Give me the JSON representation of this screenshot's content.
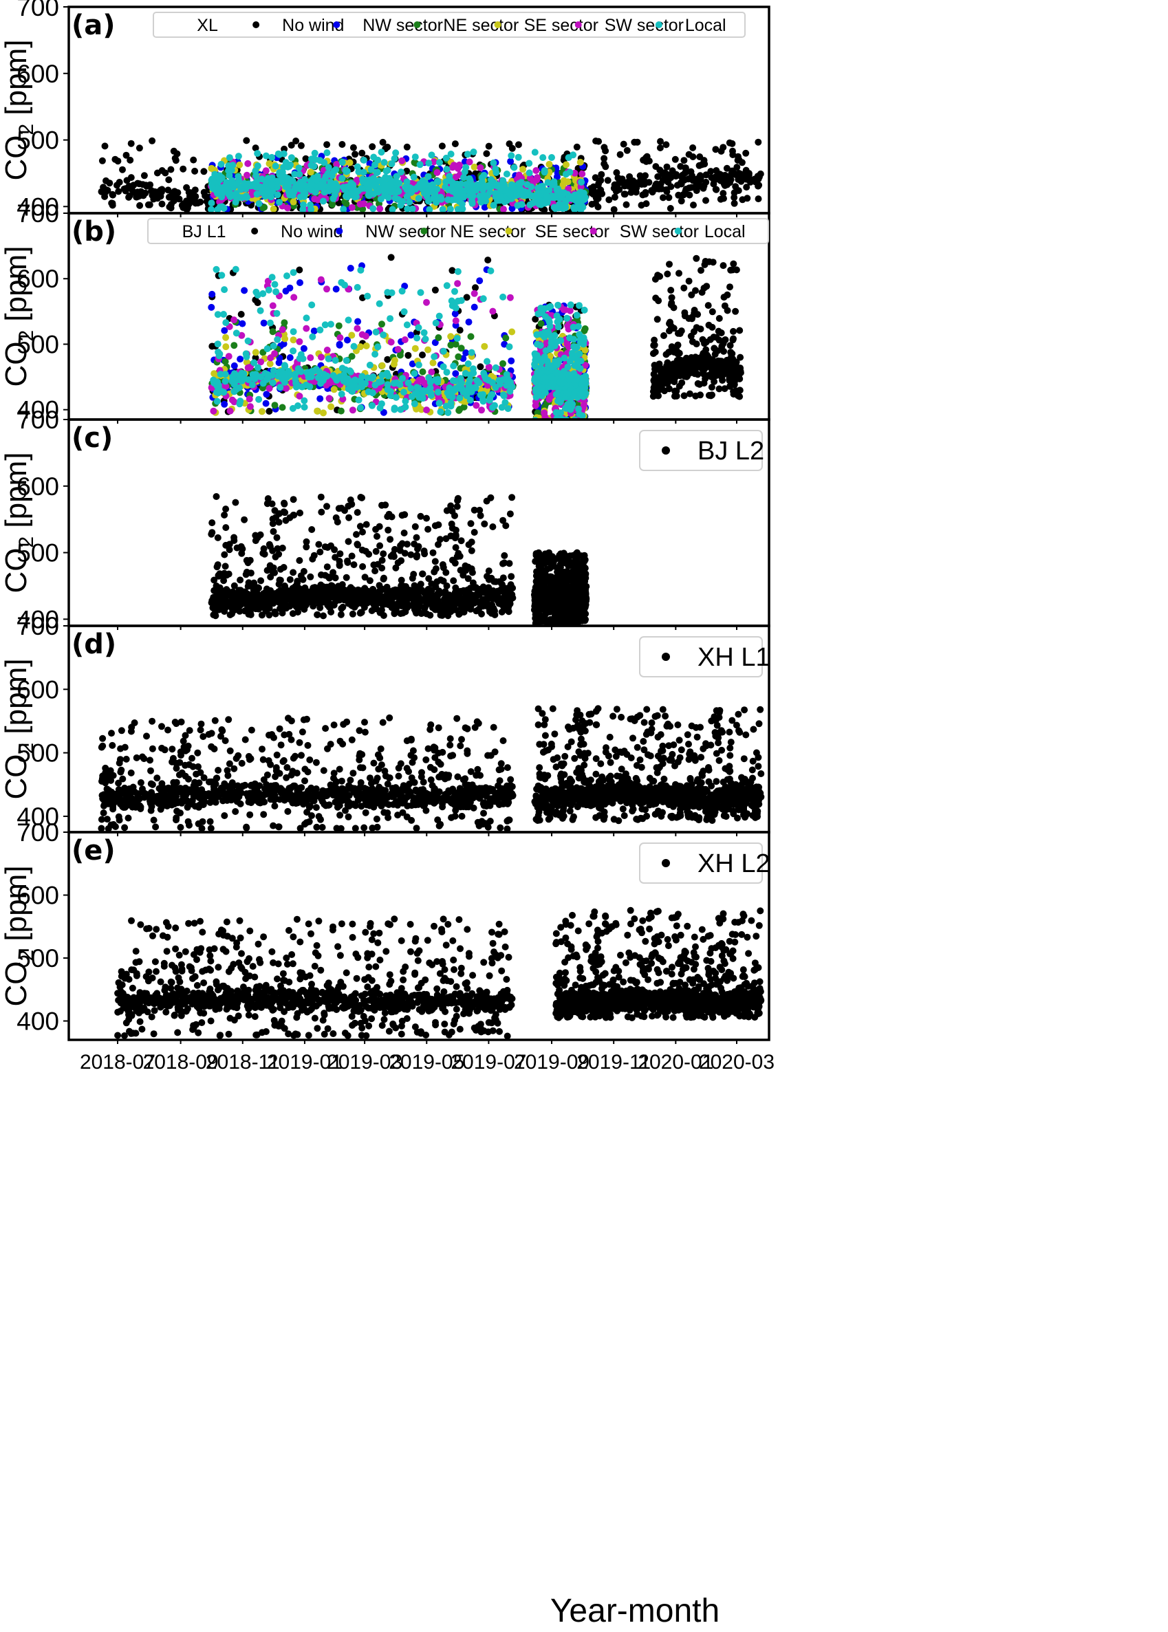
{
  "figure": {
    "xlabel": "Year-month",
    "x_tick_labels": [
      "2018-07",
      "2018-09",
      "2018-11",
      "2019-01",
      "2019-03",
      "2019-05",
      "2019-07",
      "2019-09",
      "2019-11",
      "2020-01",
      "2020-03"
    ]
  },
  "colors": {
    "no_wind": "#000000",
    "nw_sector": "#0000ee",
    "ne_sector": "#1a7f1a",
    "se_sector": "#c8c81a",
    "sw_sector": "#c010c0",
    "local": "#16c0c0"
  },
  "chart_data": [
    {
      "type": "scatter",
      "panel": "(a)",
      "ylabel": "CO2 [ppm]",
      "ylim": [
        390,
        700
      ],
      "yticks": [
        400,
        500,
        600,
        700
      ],
      "legend": [
        "XL",
        "No wind",
        "NW sector",
        "NE sector",
        "SE sector",
        "SW sector",
        "Local"
      ],
      "legend_placement": "top",
      "series": [
        {
          "name": "No wind",
          "x_start": "2018-06-15",
          "x_end": "2020-03-25",
          "baseline_ppm": [
            425,
            420,
            405,
            415,
            425,
            428,
            425,
            422,
            420,
            410,
            408,
            430,
            435,
            440,
            440
          ],
          "peak_max_ppm": 500
        },
        {
          "name": "NW sector",
          "x_start": "2018-10-01",
          "x_end": "2019-10-05",
          "baseline_ppm": [
            425,
            425,
            425,
            425
          ],
          "peak_max_ppm": 476
        },
        {
          "name": "NE sector",
          "x_start": "2018-10-01",
          "x_end": "2019-10-05",
          "baseline_ppm": [
            425,
            425,
            425,
            425
          ],
          "peak_max_ppm": 470
        },
        {
          "name": "SE sector",
          "x_start": "2018-10-01",
          "x_end": "2019-10-05",
          "baseline_ppm": [
            425,
            425,
            425,
            425
          ],
          "peak_max_ppm": 470
        },
        {
          "name": "SW sector",
          "x_start": "2018-10-01",
          "x_end": "2019-10-05",
          "baseline_ppm": [
            425,
            425,
            425,
            425
          ],
          "peak_max_ppm": 470
        },
        {
          "name": "Local",
          "x_start": "2018-10-01",
          "x_end": "2019-10-05",
          "baseline_ppm": [
            428,
            428,
            428,
            425,
            418,
            410
          ],
          "peak_max_ppm": 482
        }
      ]
    },
    {
      "type": "scatter",
      "panel": "(b)",
      "ylabel": "CO2 [ppm]",
      "ylim": [
        385,
        700
      ],
      "yticks": [
        400,
        500,
        600,
        700
      ],
      "legend": [
        "BJ L1",
        "No wind",
        "NW sector",
        "NE sector",
        "SE sector",
        "SW sector",
        "Local"
      ],
      "legend_placement": "top",
      "data_ranges": [
        {
          "x_start": "2018-10-01",
          "x_end": "2019-07-25",
          "y_min": 395,
          "y_max": 643
        },
        {
          "x_start": "2019-08-15",
          "x_end": "2019-10-05",
          "y_min": 383,
          "y_max": 560
        },
        {
          "x_start": "2019-12-10",
          "x_end": "2020-03-05",
          "y_min": 420,
          "y_max": 635
        }
      ],
      "series": [
        {
          "name": "No wind",
          "peak_max_ppm": 643
        },
        {
          "name": "NW sector",
          "peak_max_ppm": 623
        },
        {
          "name": "NE sector",
          "peak_max_ppm": 540
        },
        {
          "name": "SE sector",
          "peak_max_ppm": 520
        },
        {
          "name": "SW sector",
          "peak_max_ppm": 600
        },
        {
          "name": "Local",
          "peak_max_ppm": 615
        }
      ]
    },
    {
      "type": "scatter",
      "panel": "(c)",
      "ylabel": "CO2 [ppm]",
      "ylim": [
        390,
        700
      ],
      "yticks": [
        400,
        500,
        600,
        700
      ],
      "legend": [
        "BJ L2"
      ],
      "legend_placement": "top-right",
      "data_ranges": [
        {
          "x_start": "2018-10-01",
          "x_end": "2019-07-25",
          "y_min": 405,
          "y_max": 585
        },
        {
          "x_start": "2019-08-15",
          "x_end": "2019-10-05",
          "y_min": 393,
          "y_max": 500
        }
      ],
      "series": [
        {
          "name": "BJ L2",
          "peak_max_ppm": 585
        }
      ]
    },
    {
      "type": "scatter",
      "panel": "(d)",
      "ylabel": "CO2 [ppm]",
      "ylim": [
        375,
        700
      ],
      "yticks": [
        400,
        500,
        600,
        700
      ],
      "legend": [
        "XH L1"
      ],
      "legend_placement": "top-right",
      "data_ranges": [
        {
          "x_start": "2018-06-15",
          "x_end": "2019-07-25",
          "y_min": 380,
          "y_max": 555
        },
        {
          "x_start": "2019-08-15",
          "x_end": "2020-03-25",
          "y_min": 393,
          "y_max": 570
        }
      ],
      "series": [
        {
          "name": "XH L1",
          "peak_max_ppm": 570
        }
      ]
    },
    {
      "type": "scatter",
      "panel": "(e)",
      "ylabel": "CO2 [ppm]",
      "ylim": [
        370,
        700
      ],
      "yticks": [
        400,
        500,
        600,
        700
      ],
      "legend": [
        "XH L2"
      ],
      "legend_placement": "top-right",
      "data_ranges": [
        {
          "x_start": "2018-07-01",
          "x_end": "2019-07-25",
          "y_min": 376,
          "y_max": 562
        },
        {
          "x_start": "2019-09-05",
          "x_end": "2020-03-25",
          "y_min": 405,
          "y_max": 577
        }
      ],
      "series": [
        {
          "name": "XH L2",
          "peak_max_ppm": 577
        }
      ]
    }
  ]
}
